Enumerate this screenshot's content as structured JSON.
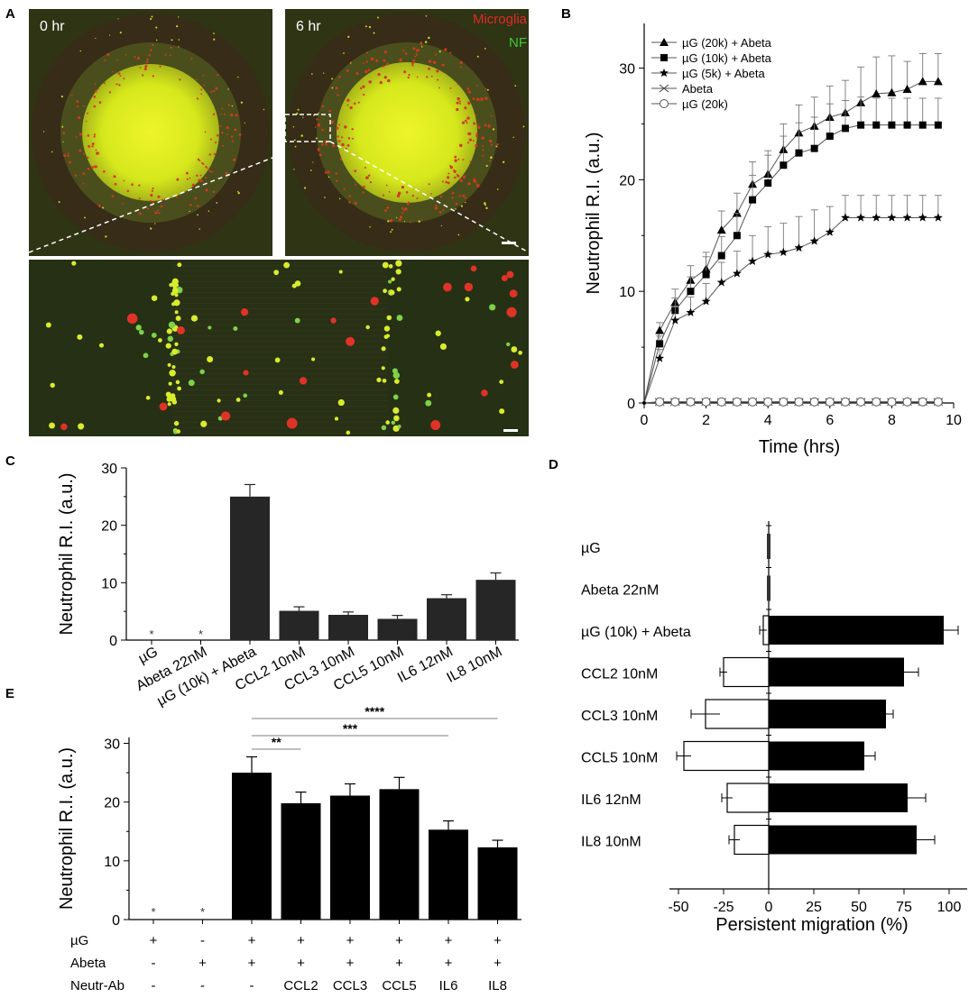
{
  "panel_labels": {
    "A": "A",
    "B": "B",
    "C": "C",
    "D": "D",
    "E": "E"
  },
  "micrograph": {
    "left_time": "0 hr",
    "right_time": "6 hr",
    "legend_red": "Microglia",
    "legend_green": "NF"
  },
  "colors": {
    "red": "#e02a2a",
    "green": "#3ecb3e",
    "core": "#e6f21a",
    "bar": "#262626"
  },
  "chart_data": [
    {
      "panel": "B",
      "type": "line",
      "xlabel": "Time (hrs)",
      "ylabel": "Neutrophil R.I. (a.u.)",
      "xlim": [
        0,
        10
      ],
      "ylim": [
        0,
        34
      ],
      "xticks": [
        0,
        2,
        4,
        6,
        8,
        10
      ],
      "yticks": [
        0,
        10,
        20,
        30
      ],
      "legend_position": "top-left",
      "x": [
        0,
        0.5,
        1,
        1.5,
        2,
        2.5,
        3,
        3.5,
        4,
        4.5,
        5,
        5.5,
        6,
        6.5,
        7,
        7.5,
        8,
        8.5,
        9,
        9.5
      ],
      "series": [
        {
          "name": "µG (20k) + Abeta",
          "marker": "triangle",
          "values": [
            0,
            6.5,
            9,
            11,
            12,
            15.5,
            17,
            19.6,
            20.5,
            22.7,
            24.2,
            24.8,
            25.6,
            26,
            26.9,
            27.7,
            27.8,
            28.1,
            28.8,
            28.8
          ],
          "error": [
            0,
            0.7,
            1.2,
            1.3,
            1.5,
            1.7,
            1.8,
            2,
            2.1,
            2.3,
            2.5,
            2.6,
            2.8,
            2.9,
            3.2,
            3.3,
            3.3,
            2.5,
            2.5,
            2.5
          ]
        },
        {
          "name": "µG (10k) + Abeta",
          "marker": "square",
          "values": [
            0,
            5.3,
            8.3,
            10,
            11.5,
            13.2,
            15,
            18.2,
            19.7,
            21.3,
            22.4,
            22.8,
            23.9,
            24.6,
            24.9,
            24.9,
            24.9,
            24.9,
            24.9,
            24.9
          ],
          "error": [
            0,
            0.7,
            1.1,
            1.3,
            1.6,
            1.7,
            2,
            2.2,
            2.5,
            2.6,
            2.7,
            2.8,
            2.9,
            2.5,
            2.5,
            2.4,
            2.4,
            2.4,
            2.4,
            2.4
          ]
        },
        {
          "name": "µG (5k) + Abeta",
          "marker": "star",
          "values": [
            0,
            4,
            7.4,
            8.1,
            9.1,
            10.8,
            11.6,
            12.7,
            13.3,
            13.5,
            13.9,
            14.5,
            15.3,
            16.6,
            16.6,
            16.6,
            16.6,
            16.6,
            16.6,
            16.6
          ],
          "error": [
            0,
            0.8,
            1.2,
            1.4,
            1.6,
            1.8,
            2,
            2.3,
            2.5,
            2.6,
            2.8,
            2.8,
            2.3,
            2,
            2,
            2,
            2,
            2,
            2,
            2
          ]
        },
        {
          "name": "Abeta",
          "marker": "x",
          "values": [
            0,
            0.1,
            0.1,
            0.1,
            0.1,
            0.1,
            0.1,
            0.1,
            0.1,
            0.1,
            0.1,
            0.1,
            0.1,
            0.1,
            0.1,
            0.1,
            0.1,
            0.1,
            0.1,
            0.1
          ]
        },
        {
          "name": "µG (20k)",
          "marker": "circle",
          "values": [
            0,
            0.1,
            0.1,
            0.1,
            0.1,
            0.1,
            0.1,
            0.1,
            0.1,
            0.1,
            0.1,
            0.1,
            0.1,
            0.1,
            0.1,
            0.1,
            0.1,
            0.1,
            0.1,
            0.1
          ]
        }
      ]
    },
    {
      "panel": "C",
      "type": "bar",
      "ylabel": "Neutrophil R.I. (a.u.)",
      "ylim": [
        0,
        30
      ],
      "yticks": [
        0,
        10,
        20,
        30
      ],
      "categories": [
        "µG",
        "Abeta 22nM",
        "µG (10k) + Abeta",
        "CCL2 10nM",
        "CCL3 10nM",
        "CCL5 10nM",
        "IL6 12nM",
        "IL8 10nM"
      ],
      "values": [
        0,
        0,
        25,
        5.1,
        4.4,
        3.7,
        7.3,
        10.5
      ],
      "errors": [
        0,
        0,
        2.1,
        0.7,
        0.5,
        0.6,
        0.6,
        1.2
      ],
      "annotations": [
        "*",
        "*",
        "",
        "",
        "",
        "",
        "",
        ""
      ]
    },
    {
      "panel": "D",
      "type": "bar",
      "orientation": "horizontal",
      "xlabel": "Persistent migration (%)",
      "xlim": [
        -55,
        110
      ],
      "xticks": [
        -50,
        -25,
        0,
        25,
        50,
        75,
        100
      ],
      "categories": [
        "µG",
        "Abeta 22nM",
        "µG (10k) + Abeta",
        "CCL2 10nM",
        "CCL3 10nM",
        "CCL5 10nM",
        "IL6 12nM",
        "IL8 10nM"
      ],
      "series": [
        {
          "fill": "white",
          "values": [
            0,
            0,
            -3,
            -25,
            -35,
            -47,
            -23,
            -19
          ],
          "errors": [
            0,
            0,
            2,
            2,
            8,
            4,
            3,
            3
          ]
        },
        {
          "fill": "black",
          "values": [
            0,
            0,
            97,
            75,
            65,
            53,
            77,
            82
          ],
          "errors": [
            0,
            0,
            8,
            8,
            4,
            6,
            10,
            10
          ]
        }
      ]
    },
    {
      "panel": "E",
      "type": "bar",
      "ylabel": "Neutrophil R.I. (a.u.)",
      "ylim": [
        0,
        31
      ],
      "yticks": [
        0,
        10,
        20,
        30
      ],
      "row_labels": [
        "µG",
        "Abeta",
        "Neutr-Ab"
      ],
      "conditions": [
        [
          "+",
          "-",
          "-"
        ],
        [
          "-",
          "+",
          "-"
        ],
        [
          "+",
          "+",
          "-"
        ],
        [
          "+",
          "+",
          "CCL2"
        ],
        [
          "+",
          "+",
          "CCL3"
        ],
        [
          "+",
          "+",
          "CCL5"
        ],
        [
          "+",
          "+",
          "IL6"
        ],
        [
          "+",
          "+",
          "IL8"
        ]
      ],
      "values": [
        0,
        0,
        25,
        19.8,
        21.1,
        22.2,
        15.3,
        12.3
      ],
      "errors": [
        0,
        0,
        2.7,
        1.9,
        2,
        2,
        1.5,
        1.2
      ],
      "annotations": [
        "*",
        "*",
        "",
        "",
        "",
        "",
        "",
        ""
      ],
      "significance": [
        {
          "from": 2,
          "to": 3,
          "label": "**"
        },
        {
          "from": 2,
          "to": 6,
          "label": "***"
        },
        {
          "from": 2,
          "to": 7,
          "label": "****"
        }
      ]
    }
  ]
}
